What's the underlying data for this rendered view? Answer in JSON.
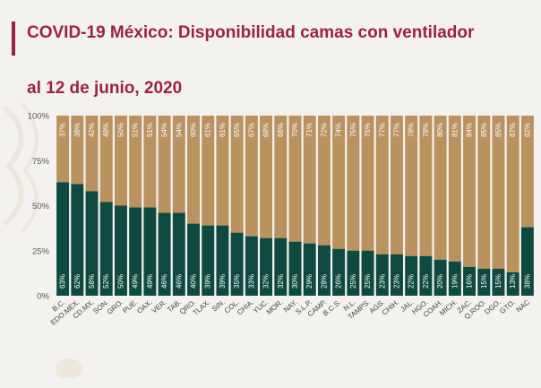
{
  "header": {
    "title": "COVID-19 México: Disponibilidad camas con ventilador",
    "subtitle": "al 12 de junio, 2020"
  },
  "colors": {
    "occupied": "#0e4a3f",
    "available": "#b9925f",
    "title": "#9b2247"
  },
  "chart_data": {
    "type": "bar",
    "stacked": true,
    "categories": [
      "B.C.",
      "EDO.MEX.",
      "CD.MX.",
      "SON.",
      "GRO.",
      "PUE.",
      "OAX.",
      "VER.",
      "TAB.",
      "QRO.",
      "TLAX.",
      "SIN.",
      "COL.",
      "CHIA.",
      "YUC.",
      "MOR.",
      "NAY.",
      "S.L.P.",
      "CAMP.",
      "B.C.S.",
      "N.L.",
      "TAMPS.",
      "AGS.",
      "CHIH.",
      "JAL.",
      "HGO.",
      "COAH.",
      "MICH.",
      "ZAC.",
      "Q.ROO.",
      "DGO.",
      "GTO.",
      "NAC"
    ],
    "series": [
      {
        "values": [
          63,
          62,
          58,
          52,
          50,
          49,
          49,
          46,
          46,
          40,
          39,
          39,
          35,
          33,
          32,
          32,
          30,
          29,
          28,
          26,
          25,
          25,
          23,
          23,
          22,
          22,
          20,
          19,
          16,
          15,
          15,
          13,
          38
        ]
      },
      {
        "values": [
          37,
          38,
          42,
          48,
          50,
          51,
          51,
          54,
          54,
          60,
          61,
          61,
          65,
          67,
          68,
          68,
          70,
          71,
          72,
          74,
          75,
          75,
          77,
          77,
          78,
          78,
          80,
          81,
          84,
          85,
          85,
          87,
          62
        ]
      }
    ],
    "y_ticks": [
      "0%",
      "25%",
      "50%",
      "75%",
      "100%"
    ],
    "ylim": [
      0,
      100
    ],
    "grid": false
  }
}
